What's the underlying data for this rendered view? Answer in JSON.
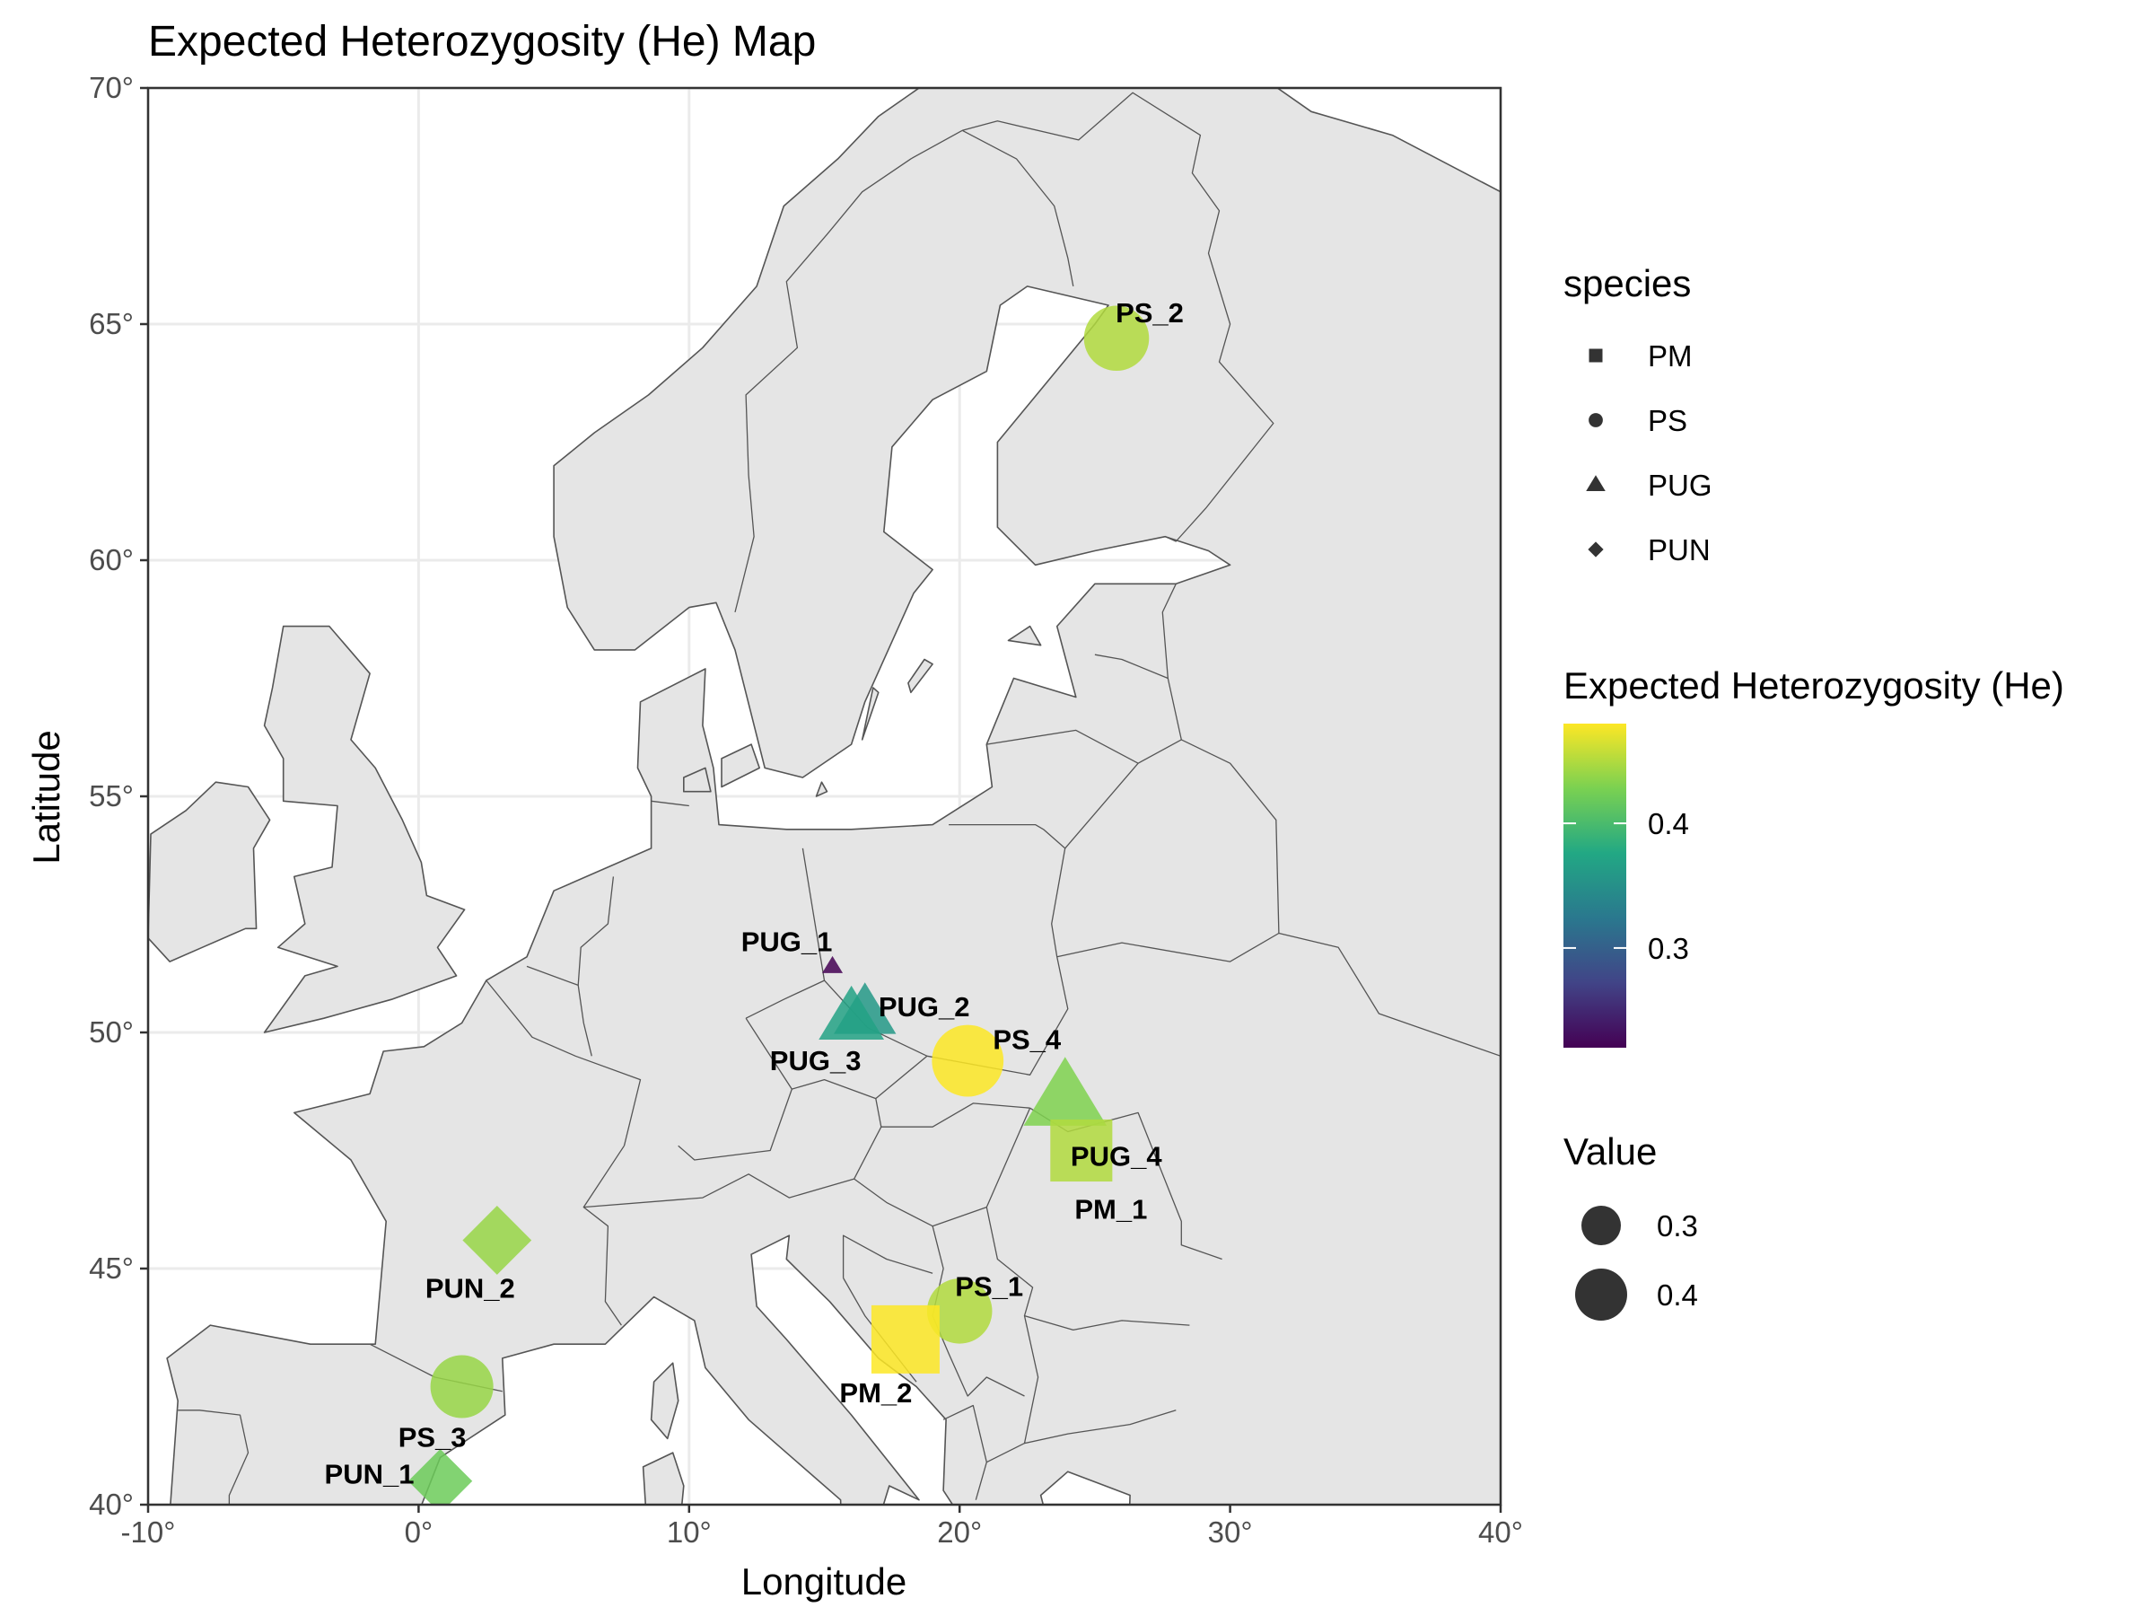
{
  "chart_data": {
    "type": "scatter",
    "title": "Expected Heterozygosity (He) Map",
    "xlabel": "Longitude",
    "ylabel": "Latitude",
    "xlim": [
      -10,
      40
    ],
    "ylim": [
      40,
      70
    ],
    "x_ticks": [
      -10,
      0,
      10,
      20,
      30,
      40
    ],
    "y_ticks": [
      40,
      45,
      50,
      55,
      60,
      65,
      70
    ],
    "x_tick_labels": [
      "-10°",
      "0°",
      "10°",
      "20°",
      "30°",
      "40°"
    ],
    "y_tick_labels": [
      "40°",
      "45°",
      "50°",
      "55°",
      "60°",
      "65°",
      "70°"
    ],
    "grid": true,
    "basemap": "Europe country borders, land gray on white sea",
    "colors": {
      "land": "#e5e5e5",
      "border": "#555555",
      "sea": "#ffffff",
      "grid": "#ebebeb",
      "panel_border": "#333333"
    },
    "points": [
      {
        "label": "PS_2",
        "species": "PS",
        "lon": 25.8,
        "lat": 64.7,
        "he": 0.45,
        "value": 0.45
      },
      {
        "label": "PUG_1",
        "species": "PUG",
        "lon": 15.3,
        "lat": 51.4,
        "he": 0.22,
        "value": 0.22
      },
      {
        "label": "PUG_2",
        "species": "PUG",
        "lon": 16.5,
        "lat": 50.4,
        "he": 0.36,
        "value": 0.36
      },
      {
        "label": "PUG_3",
        "species": "PUG",
        "lon": 16.0,
        "lat": 50.3,
        "he": 0.37,
        "value": 0.37
      },
      {
        "label": "PS_4",
        "species": "PS",
        "lon": 20.3,
        "lat": 49.4,
        "he": 0.48,
        "value": 0.48
      },
      {
        "label": "PUG_4",
        "species": "PUG",
        "lon": 23.9,
        "lat": 48.6,
        "he": 0.43,
        "value": 0.43
      },
      {
        "label": "PM_1",
        "species": "PM",
        "lon": 24.5,
        "lat": 47.5,
        "he": 0.45,
        "value": 0.45
      },
      {
        "label": "PUN_2",
        "species": "PUN",
        "lon": 2.9,
        "lat": 45.6,
        "he": 0.44,
        "value": 0.44
      },
      {
        "label": "PS_1",
        "species": "PS",
        "lon": 20.0,
        "lat": 44.1,
        "he": 0.45,
        "value": 0.45
      },
      {
        "label": "PM_2",
        "species": "PM",
        "lon": 18.0,
        "lat": 43.5,
        "he": 0.48,
        "value": 0.48
      },
      {
        "label": "PS_3",
        "species": "PS",
        "lon": 1.6,
        "lat": 42.5,
        "he": 0.44,
        "value": 0.44
      },
      {
        "label": "PUN_1",
        "species": "PUN",
        "lon": 0.8,
        "lat": 40.5,
        "he": 0.42,
        "value": 0.42
      }
    ],
    "legend_species": {
      "title": "species",
      "items": [
        {
          "label": "PM",
          "shape": "square"
        },
        {
          "label": "PS",
          "shape": "circle"
        },
        {
          "label": "PUG",
          "shape": "triangle"
        },
        {
          "label": "PUN",
          "shape": "diamond"
        }
      ],
      "placement": "right"
    },
    "legend_color": {
      "title": "Expected Heterozygosity (He)",
      "range": [
        0.22,
        0.48
      ],
      "ticks": [
        0.3,
        0.4
      ],
      "tick_labels": [
        "0.3",
        "0.4"
      ],
      "palette": [
        "#440154",
        "#414487",
        "#2a788e",
        "#22a884",
        "#7ad151",
        "#fde725"
      ],
      "placement": "right"
    },
    "legend_size": {
      "title": "Value",
      "items": [
        {
          "label": "0.3",
          "value": 0.3
        },
        {
          "label": "0.4",
          "value": 0.4
        }
      ],
      "placement": "right"
    }
  }
}
